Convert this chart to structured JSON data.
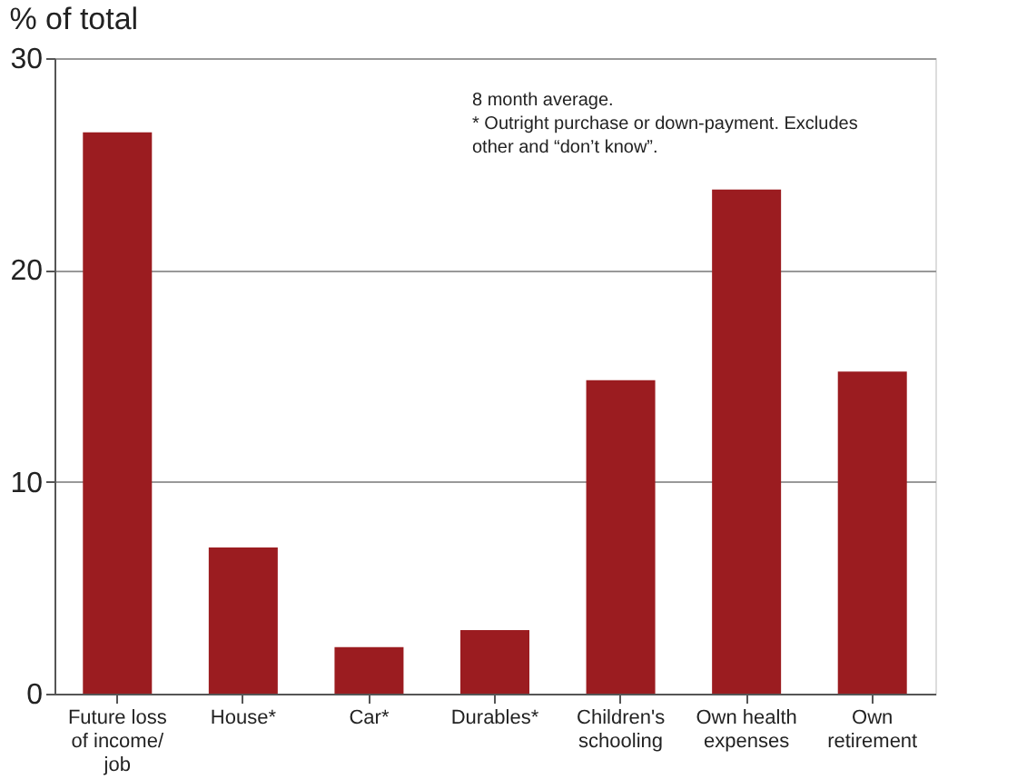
{
  "chart_data": {
    "type": "bar",
    "ylabel": "% of total",
    "categories": [
      "Future loss\nof income/\njob",
      "House*",
      "Car*",
      "Durables*",
      "Children's\nschooling",
      "Own health\nexpenses",
      "Own\nretirement"
    ],
    "values": [
      26.5,
      6.9,
      2.2,
      3.0,
      14.8,
      23.8,
      15.2
    ],
    "color": "#9b1c20",
    "ylim": [
      0,
      30
    ],
    "yticks": [
      0,
      10,
      20,
      30
    ],
    "grid": "y",
    "annotations": [
      "8 month average.\n* Outright purchase or down-payment. Excludes\nother and “don’t know”."
    ]
  }
}
